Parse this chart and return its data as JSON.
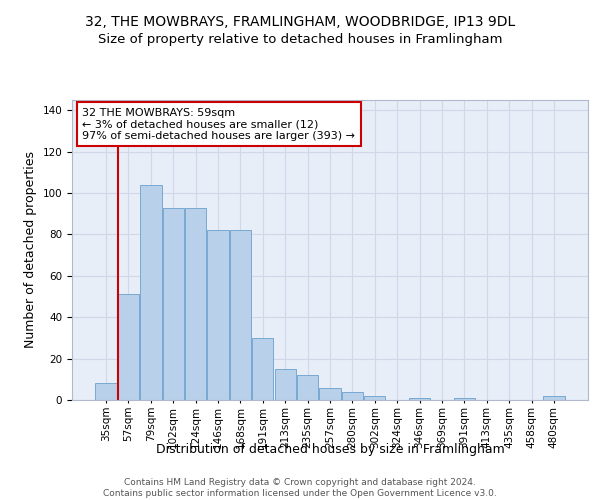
{
  "title_line1": "32, THE MOWBRAYS, FRAMLINGHAM, WOODBRIDGE, IP13 9DL",
  "title_line2": "Size of property relative to detached houses in Framlingham",
  "xlabel": "Distribution of detached houses by size in Framlingham",
  "ylabel": "Number of detached properties",
  "footnote": "Contains HM Land Registry data © Crown copyright and database right 2024.\nContains public sector information licensed under the Open Government Licence v3.0.",
  "bar_labels": [
    "35sqm",
    "57sqm",
    "79sqm",
    "102sqm",
    "124sqm",
    "146sqm",
    "168sqm",
    "191sqm",
    "213sqm",
    "235sqm",
    "257sqm",
    "280sqm",
    "302sqm",
    "324sqm",
    "346sqm",
    "369sqm",
    "391sqm",
    "413sqm",
    "435sqm",
    "458sqm",
    "480sqm"
  ],
  "bar_values": [
    8,
    51,
    104,
    93,
    93,
    82,
    82,
    30,
    15,
    12,
    6,
    4,
    2,
    0,
    1,
    0,
    1,
    0,
    0,
    0,
    2
  ],
  "bar_color": "#b8d0ea",
  "bar_edge_color": "#6aa0cc",
  "highlight_color": "#cc0000",
  "annotation_text": "32 THE MOWBRAYS: 59sqm\n← 3% of detached houses are smaller (12)\n97% of semi-detached houses are larger (393) →",
  "annotation_box_color": "#ffffff",
  "annotation_box_edge_color": "#cc0000",
  "ylim": [
    0,
    145
  ],
  "yticks": [
    0,
    20,
    40,
    60,
    80,
    100,
    120,
    140
  ],
  "grid_color": "#d0d8e8",
  "background_color": "#e8eef8",
  "title_fontsize": 10,
  "subtitle_fontsize": 9.5,
  "axis_label_fontsize": 9,
  "tick_fontsize": 7.5,
  "annotation_fontsize": 8,
  "footnote_fontsize": 6.5
}
